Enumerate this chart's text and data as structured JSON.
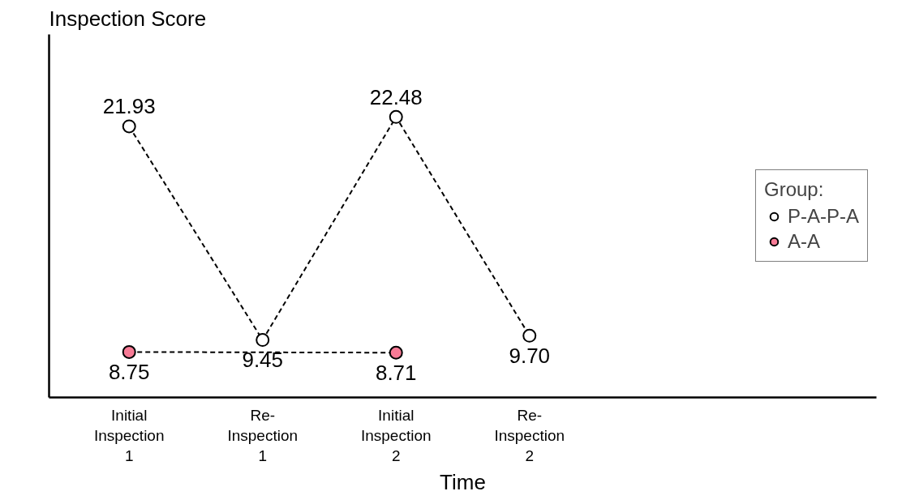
{
  "chart_data": {
    "type": "line",
    "xlabel": "Time",
    "ylabel": "Inspection Score",
    "legend_title": "Group:",
    "categories": [
      "Initial\nInspection\n1",
      "Re-\nInspection\n1",
      "Initial\nInspection\n2",
      "Re-\nInspection\n2"
    ],
    "series": [
      {
        "name": "P-A-P-A",
        "color": "#ffffff",
        "values": [
          21.93,
          9.45,
          22.48,
          9.7
        ],
        "value_labels": [
          "21.93",
          "9.45",
          "22.48",
          "9.70"
        ]
      },
      {
        "name": "A-A",
        "color": "#f77b96",
        "values": [
          8.75,
          null,
          8.71,
          null
        ],
        "value_labels": [
          "8.75",
          null,
          "8.71",
          null
        ]
      }
    ],
    "tick_labels": "x",
    "grid": false,
    "legend": "right",
    "marker": "circle",
    "line_style": "dashed"
  }
}
